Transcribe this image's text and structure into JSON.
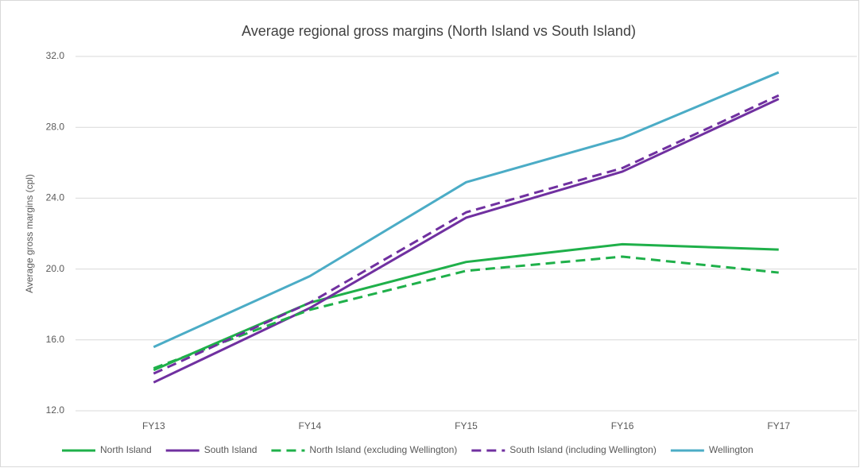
{
  "chart_data": {
    "type": "line",
    "title": "Average regional gross margins (North Island vs South Island)",
    "y_label": "Average gross margins (cpl)",
    "categories": [
      "FY13",
      "FY14",
      "FY15",
      "FY16",
      "FY17"
    ],
    "series": [
      {
        "name": "North Island",
        "color": "#1fb04a",
        "dashed": false,
        "values": [
          14.3,
          18.1,
          20.4,
          21.4,
          21.1
        ]
      },
      {
        "name": "South Island",
        "color": "#7030a0",
        "dashed": false,
        "values": [
          13.6,
          17.8,
          22.9,
          25.5,
          29.6
        ]
      },
      {
        "name": "North Island (excluding Wellington)",
        "color": "#1fb04a",
        "dashed": true,
        "values": [
          14.4,
          17.7,
          19.9,
          20.7,
          19.8
        ]
      },
      {
        "name": "South Island (including Wellington)",
        "color": "#7030a0",
        "dashed": true,
        "values": [
          14.1,
          18.1,
          23.2,
          25.7,
          29.8
        ]
      },
      {
        "name": "Wellington",
        "color": "#4bacc6",
        "dashed": false,
        "values": [
          15.6,
          19.6,
          24.9,
          27.4,
          31.1
        ]
      }
    ],
    "ylim": [
      12,
      32
    ],
    "yticks": [
      {
        "value": 12,
        "label": "12.0"
      },
      {
        "value": 16,
        "label": "16.0"
      },
      {
        "value": 20,
        "label": "20.0"
      },
      {
        "value": 24,
        "label": "24.0"
      },
      {
        "value": 28,
        "label": "28.0"
      },
      {
        "value": 32,
        "label": "32.0"
      }
    ],
    "grid": true,
    "legend": "bottom"
  }
}
